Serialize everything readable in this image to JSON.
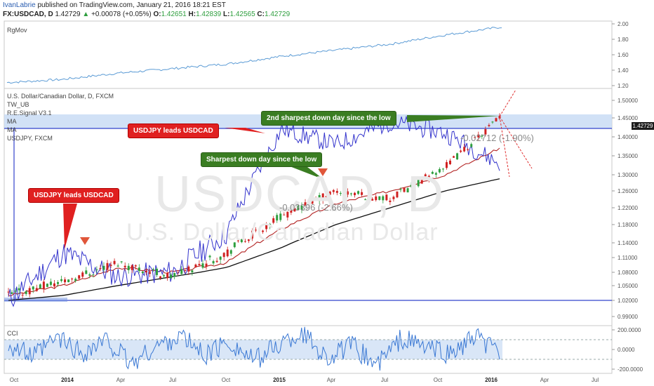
{
  "header": {
    "author": "IvanLabrie",
    "published": "published on TradingView.com, January 21, 2016 18:21 EST",
    "symbol": "FX:USDCAD, D",
    "last": "1.42729",
    "arrow": "▲",
    "change": "+0.00078 (+0.05%)",
    "o_label": "O:",
    "o_value": "1.42651",
    "h_label": "H:",
    "h_value": "1.42839",
    "l_label": "L:",
    "l_value": "1.42565",
    "c_label": "C:",
    "c_value": "1.42729"
  },
  "panes": {
    "top_label": "RgMov",
    "main_labels": [
      "U.S. Dollar/Canadian Dollar, D, FXCM",
      "TW_UB",
      "R.E.Signal V3.1",
      "MA",
      "MA",
      "USDJPY, FXCM"
    ],
    "bottom_label": "CCI"
  },
  "watermark": {
    "symbol": "USDCAD, D",
    "name": "U.S. Dollar/Canadian Dollar"
  },
  "callouts": {
    "red1": "USDJPY leads USDCAD",
    "red2": "USDJPY leads USDCAD",
    "green1": "Sharpest down day since the low",
    "green2": "2nd sharpest down day since the low"
  },
  "measurements": {
    "m1": "-0.03396 (-2.66%)",
    "m2": "-0.02712 (-1.90%)"
  },
  "price_tag": "1.42729",
  "colors": {
    "usdjpy_line": "#3333cc",
    "ma_fast": "#b22222",
    "ma_slow": "#111111",
    "candle_up": "#2e9e3e",
    "candle_down": "#d02020",
    "zone_fill": "#c9dcf5",
    "rgmov_line": "#5b9bd5",
    "cci_line": "#3a78d4"
  },
  "chart_data": [
    {
      "type": "line",
      "title": "RgMov",
      "x": [
        "Oct 2013",
        "Jan 2014",
        "Apr 2014",
        "Jul 2014",
        "Oct 2014",
        "Jan 2015",
        "Apr 2015",
        "Jul 2015",
        "Oct 2015",
        "Jan 2016"
      ],
      "series": [
        {
          "values": [
            1.24,
            1.28,
            1.36,
            1.42,
            1.48,
            1.58,
            1.66,
            1.74,
            1.86,
            1.96
          ]
        }
      ],
      "ylim": [
        1.2,
        2.0
      ],
      "yticks": [
        "2.00",
        "1.80",
        "1.60",
        "1.40",
        "1.20"
      ]
    },
    {
      "type": "line",
      "title": "U.S. Dollar/Canadian Dollar, D, FXCM",
      "x": [
        "Oct 2013",
        "Jan 2014",
        "Apr 2014",
        "Jul 2014",
        "Oct 2014",
        "Jan 2015",
        "Apr 2015",
        "Jul 2015",
        "Oct 2015",
        "Jan 2016"
      ],
      "series": [
        {
          "name": "USDCAD",
          "values": [
            1.03,
            1.06,
            1.1,
            1.07,
            1.12,
            1.2,
            1.26,
            1.24,
            1.32,
            1.45
          ]
        },
        {
          "name": "MA",
          "values": [
            1.03,
            1.05,
            1.09,
            1.08,
            1.1,
            1.17,
            1.23,
            1.26,
            1.3,
            1.37
          ]
        },
        {
          "name": "MA",
          "values": [
            1.02,
            1.03,
            1.05,
            1.07,
            1.09,
            1.13,
            1.18,
            1.22,
            1.26,
            1.29
          ]
        },
        {
          "name": "USDJPY, FXCM",
          "values": [
            1.02,
            1.12,
            1.07,
            1.08,
            1.16,
            1.42,
            1.38,
            1.44,
            1.41,
            1.33
          ]
        }
      ],
      "ylim": [
        0.98,
        1.51
      ],
      "yticks": [
        "1.50000",
        "1.45000",
        "1.40000",
        "1.35000",
        "1.30000",
        "1.26000",
        "1.22000",
        "1.18000",
        "1.14000",
        "1.11000",
        "1.08000",
        "1.05000",
        "1.02000",
        "0.99000"
      ],
      "xticks": [
        "Oct",
        "2014",
        "Apr",
        "Jul",
        "Oct",
        "2015",
        "Apr",
        "Jul",
        "Oct",
        "2016",
        "Apr",
        "Jul"
      ]
    },
    {
      "type": "line",
      "title": "CCI",
      "ylim": [
        -200,
        200
      ],
      "yticks": [
        "200.0000",
        "0.0000",
        "-200.0000"
      ],
      "series": [
        {
          "values": [
            60,
            -80,
            120,
            -40,
            90,
            -150,
            30,
            140,
            -60,
            80,
            -120,
            50,
            170,
            -90,
            40,
            -160,
            110,
            20,
            -50,
            120,
            -30
          ]
        }
      ]
    }
  ]
}
